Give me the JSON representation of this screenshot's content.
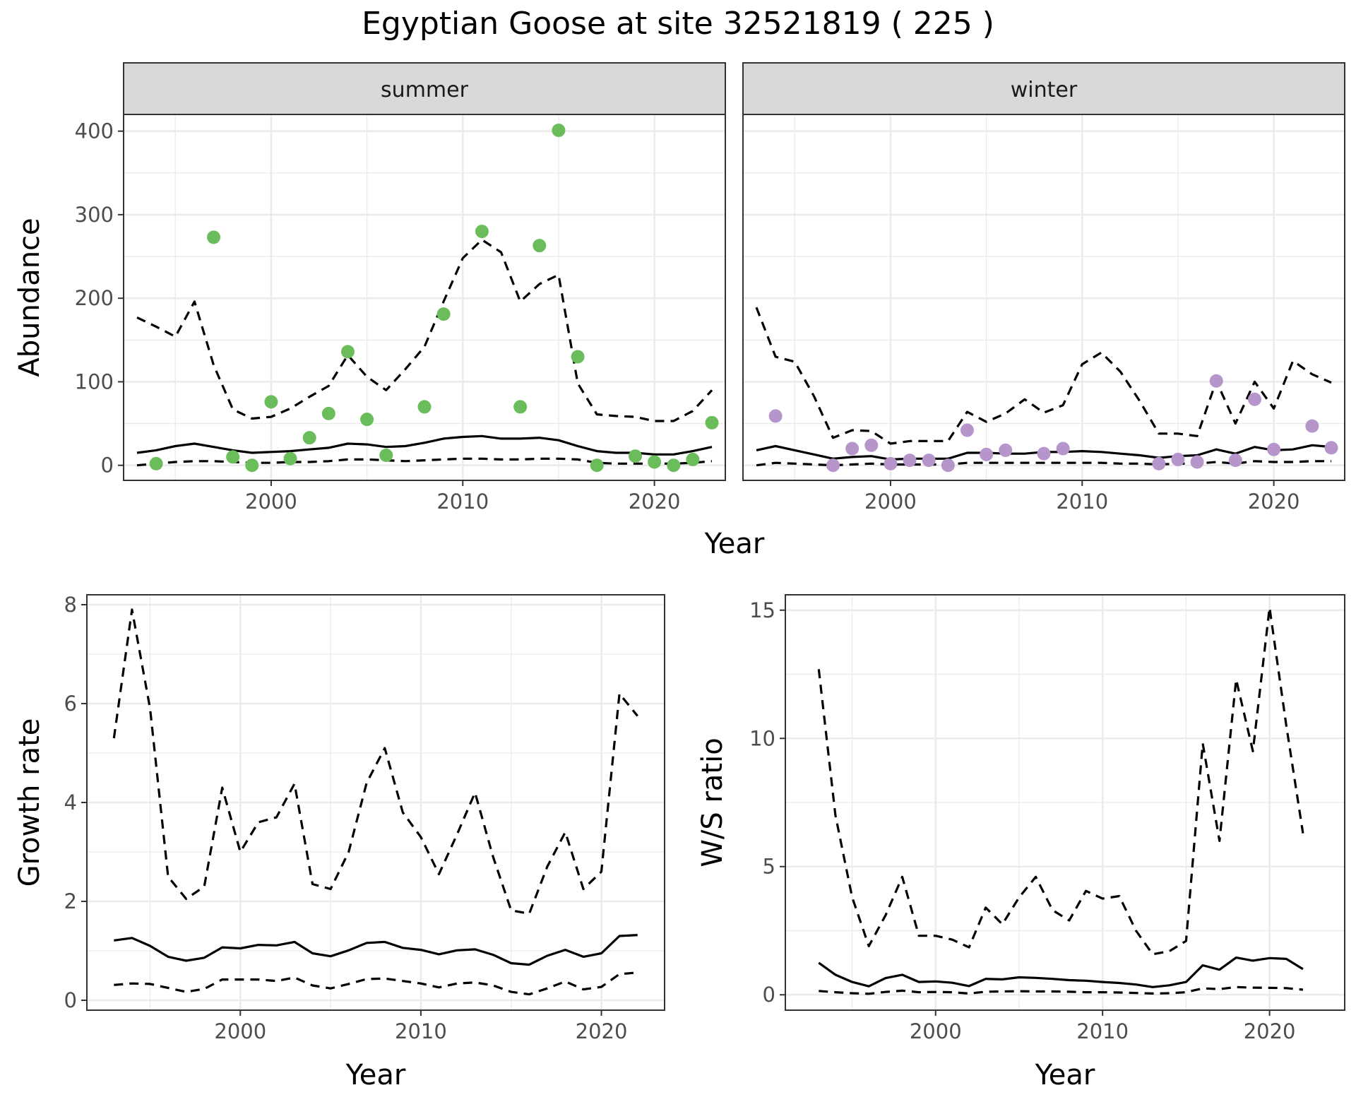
{
  "title": "Egyptian Goose at site 32521819 ( 225 )",
  "colors": {
    "summer": "#6bbd5b",
    "winter": "#b695cb",
    "line": "#000000"
  },
  "chart_data": [
    {
      "type": "scatter",
      "facet": "summer",
      "strip_label": "summer",
      "xlabel": "Year",
      "ylabel": "Abundance",
      "xlim": [
        1992.3,
        2023.7
      ],
      "ylim": [
        -18,
        420
      ],
      "x_ticks": [
        2000,
        2010,
        2020
      ],
      "y_ticks": [
        0,
        100,
        200,
        300,
        400
      ],
      "points": {
        "x": [
          1994,
          1997,
          1998,
          1999,
          2000,
          2001,
          2002,
          2003,
          2004,
          2005,
          2006,
          2008,
          2009,
          2011,
          2013,
          2014,
          2015,
          2016,
          2017,
          2019,
          2020,
          2021,
          2022,
          2023
        ],
        "y": [
          2,
          273,
          10,
          0,
          76,
          8,
          33,
          62,
          136,
          55,
          12,
          70,
          181,
          280,
          70,
          263,
          401,
          130,
          0,
          11,
          4,
          0,
          7,
          51
        ]
      },
      "series": [
        {
          "style": "solid",
          "x": [
            1993,
            1994,
            1995,
            1996,
            1997,
            1998,
            1999,
            2000,
            2001,
            2002,
            2003,
            2004,
            2005,
            2006,
            2007,
            2008,
            2009,
            2010,
            2011,
            2012,
            2013,
            2014,
            2015,
            2016,
            2017,
            2018,
            2019,
            2020,
            2021,
            2022,
            2023
          ],
          "y": [
            15,
            18,
            23,
            26,
            22,
            18,
            15,
            16,
            17,
            19,
            21,
            26,
            25,
            22,
            23,
            27,
            32,
            34,
            35,
            32,
            32,
            33,
            30,
            23,
            17,
            15,
            15,
            13,
            13,
            17,
            22
          ]
        },
        {
          "style": "dashed",
          "x": [
            1993,
            1994,
            1995,
            1996,
            1997,
            1998,
            1999,
            2000,
            2001,
            2002,
            2003,
            2004,
            2005,
            2006,
            2007,
            2008,
            2009,
            2010,
            2011,
            2012,
            2013,
            2014,
            2015,
            2016,
            2017,
            2018,
            2019,
            2020,
            2021,
            2022,
            2023
          ],
          "y": [
            177,
            166,
            154,
            196,
            120,
            67,
            56,
            58,
            68,
            82,
            95,
            132,
            106,
            90,
            115,
            142,
            196,
            248,
            270,
            255,
            196,
            217,
            228,
            98,
            61,
            59,
            58,
            53,
            53,
            65,
            90
          ]
        },
        {
          "style": "dashed",
          "x": [
            1993,
            1994,
            1995,
            1996,
            1997,
            1998,
            1999,
            2000,
            2001,
            2002,
            2003,
            2004,
            2005,
            2006,
            2007,
            2008,
            2009,
            2010,
            2011,
            2012,
            2013,
            2014,
            2015,
            2016,
            2017,
            2018,
            2019,
            2020,
            2021,
            2022,
            2023
          ],
          "y": [
            0,
            2,
            4,
            5,
            5,
            4,
            3,
            3,
            4,
            4,
            5,
            7,
            7,
            6,
            5,
            6,
            7,
            8,
            8,
            7,
            7,
            8,
            8,
            7,
            3,
            2,
            2,
            2,
            2,
            3,
            5
          ]
        }
      ]
    },
    {
      "type": "scatter",
      "facet": "winter",
      "strip_label": "winter",
      "xlabel": "Year",
      "ylabel": "Abundance",
      "xlim": [
        1992.3,
        2023.7
      ],
      "ylim": [
        -18,
        420
      ],
      "x_ticks": [
        2000,
        2010,
        2020
      ],
      "y_ticks": [
        0,
        100,
        200,
        300,
        400
      ],
      "points": {
        "x": [
          1994,
          1997,
          1998,
          1999,
          2000,
          2001,
          2002,
          2003,
          2004,
          2005,
          2006,
          2008,
          2009,
          2014,
          2015,
          2016,
          2017,
          2018,
          2019,
          2020,
          2022,
          2023
        ],
        "y": [
          59,
          0,
          20,
          24,
          2,
          6,
          6,
          0,
          42,
          13,
          18,
          14,
          20,
          2,
          7,
          4,
          101,
          6,
          79,
          19,
          47,
          21
        ]
      },
      "series": [
        {
          "style": "solid",
          "x": [
            1993,
            1994,
            1995,
            1996,
            1997,
            1998,
            1999,
            2000,
            2001,
            2002,
            2003,
            2004,
            2005,
            2006,
            2007,
            2008,
            2009,
            2010,
            2011,
            2012,
            2013,
            2014,
            2015,
            2016,
            2017,
            2018,
            2019,
            2020,
            2021,
            2022,
            2023
          ],
          "y": [
            18,
            23,
            18,
            13,
            8,
            10,
            11,
            7,
            8,
            8,
            8,
            15,
            15,
            14,
            14,
            16,
            16,
            17,
            16,
            14,
            12,
            9,
            11,
            12,
            19,
            14,
            22,
            18,
            19,
            24,
            22
          ]
        },
        {
          "style": "dashed",
          "x": [
            1993,
            1994,
            1995,
            1996,
            1997,
            1998,
            1999,
            2000,
            2001,
            2002,
            2003,
            2004,
            2005,
            2006,
            2007,
            2008,
            2009,
            2010,
            2011,
            2012,
            2013,
            2014,
            2015,
            2016,
            2017,
            2018,
            2019,
            2020,
            2021,
            2022,
            2023
          ],
          "y": [
            189,
            130,
            124,
            83,
            33,
            42,
            41,
            26,
            29,
            29,
            29,
            64,
            52,
            62,
            79,
            63,
            72,
            121,
            135,
            112,
            77,
            38,
            38,
            35,
            101,
            50,
            100,
            68,
            125,
            109,
            99
          ]
        },
        {
          "style": "dashed",
          "x": [
            1993,
            1994,
            1995,
            1996,
            1997,
            1998,
            1999,
            2000,
            2001,
            2002,
            2003,
            2004,
            2005,
            2006,
            2007,
            2008,
            2009,
            2010,
            2011,
            2012,
            2013,
            2014,
            2015,
            2016,
            2017,
            2018,
            2019,
            2020,
            2021,
            2022,
            2023
          ],
          "y": [
            0,
            3,
            2,
            1,
            0,
            1,
            2,
            1,
            1,
            1,
            1,
            3,
            3,
            3,
            3,
            3,
            3,
            3,
            3,
            2,
            2,
            1,
            2,
            2,
            4,
            2,
            5,
            4,
            4,
            5,
            5
          ]
        }
      ]
    },
    {
      "type": "line",
      "xlabel": "Year",
      "ylabel": "Growth rate",
      "xlim": [
        1991.5,
        2023.5
      ],
      "ylim": [
        -0.2,
        8.2
      ],
      "x_ticks": [
        2000,
        2010,
        2020
      ],
      "y_ticks": [
        0,
        2,
        4,
        6,
        8
      ],
      "series": [
        {
          "style": "solid",
          "x": [
            1993,
            1994,
            1995,
            1996,
            1997,
            1998,
            1999,
            2000,
            2001,
            2002,
            2003,
            2004,
            2005,
            2006,
            2007,
            2008,
            2009,
            2010,
            2011,
            2012,
            2013,
            2014,
            2015,
            2016,
            2017,
            2018,
            2019,
            2020,
            2021,
            2022
          ],
          "y": [
            1.21,
            1.26,
            1.1,
            0.88,
            0.8,
            0.86,
            1.07,
            1.05,
            1.12,
            1.11,
            1.18,
            0.95,
            0.89,
            1.01,
            1.16,
            1.18,
            1.06,
            1.02,
            0.93,
            1.01,
            1.03,
            0.92,
            0.75,
            0.72,
            0.9,
            1.02,
            0.88,
            0.95,
            1.3,
            1.32
          ]
        },
        {
          "style": "dashed",
          "x": [
            1993,
            1994,
            1995,
            1996,
            1997,
            1998,
            1999,
            2000,
            2001,
            2002,
            2003,
            2004,
            2005,
            2006,
            2007,
            2008,
            2009,
            2010,
            2011,
            2012,
            2013,
            2014,
            2015,
            2016,
            2017,
            2018,
            2019,
            2020,
            2021,
            2022
          ],
          "y": [
            5.3,
            7.9,
            5.9,
            2.5,
            2.05,
            2.3,
            4.3,
            3.0,
            3.6,
            3.7,
            4.38,
            2.35,
            2.25,
            3.0,
            4.4,
            5.1,
            3.8,
            3.3,
            2.55,
            3.35,
            4.2,
            2.9,
            1.82,
            1.75,
            2.7,
            3.4,
            2.25,
            2.6,
            6.2,
            5.75
          ]
        },
        {
          "style": "dashed",
          "x": [
            1993,
            1994,
            1995,
            1996,
            1997,
            1998,
            1999,
            2000,
            2001,
            2002,
            2003,
            2004,
            2005,
            2006,
            2007,
            2008,
            2009,
            2010,
            2011,
            2012,
            2013,
            2014,
            2015,
            2016,
            2017,
            2018,
            2019,
            2020,
            2021,
            2022
          ],
          "y": [
            0.31,
            0.34,
            0.33,
            0.25,
            0.17,
            0.23,
            0.42,
            0.42,
            0.42,
            0.39,
            0.46,
            0.3,
            0.24,
            0.33,
            0.43,
            0.44,
            0.39,
            0.34,
            0.26,
            0.34,
            0.36,
            0.3,
            0.17,
            0.12,
            0.24,
            0.38,
            0.22,
            0.27,
            0.53,
            0.56
          ]
        }
      ]
    },
    {
      "type": "line",
      "xlabel": "Year",
      "ylabel": "W/S ratio",
      "xlim": [
        1991,
        2024.5
      ],
      "ylim": [
        -0.6,
        15.6
      ],
      "x_ticks": [
        2000,
        2010,
        2020
      ],
      "y_ticks": [
        0,
        5,
        10,
        15
      ],
      "series": [
        {
          "style": "solid",
          "x": [
            1993,
            1994,
            1995,
            1996,
            1997,
            1998,
            1999,
            2000,
            2001,
            2002,
            2003,
            2004,
            2005,
            2006,
            2007,
            2008,
            2009,
            2010,
            2011,
            2012,
            2013,
            2014,
            2015,
            2016,
            2017,
            2018,
            2019,
            2020,
            2021,
            2022
          ],
          "y": [
            1.25,
            0.78,
            0.5,
            0.33,
            0.65,
            0.78,
            0.5,
            0.52,
            0.47,
            0.34,
            0.62,
            0.6,
            0.68,
            0.66,
            0.62,
            0.57,
            0.55,
            0.5,
            0.46,
            0.4,
            0.3,
            0.37,
            0.5,
            1.15,
            0.98,
            1.45,
            1.33,
            1.43,
            1.4,
            1.0
          ]
        },
        {
          "style": "dashed",
          "x": [
            1993,
            1994,
            1995,
            1996,
            1997,
            1998,
            1999,
            2000,
            2001,
            2002,
            2003,
            2004,
            2005,
            2006,
            2007,
            2008,
            2009,
            2010,
            2011,
            2012,
            2013,
            2014,
            2015,
            2016,
            2017,
            2018,
            2019,
            2020,
            2021,
            2022
          ],
          "y": [
            12.7,
            7.0,
            3.8,
            1.9,
            3.1,
            4.6,
            2.3,
            2.3,
            2.15,
            1.85,
            3.4,
            2.75,
            3.8,
            4.6,
            3.3,
            2.9,
            4.05,
            3.75,
            3.85,
            2.5,
            1.58,
            1.7,
            2.1,
            9.8,
            6.0,
            12.3,
            9.5,
            15.1,
            10.5,
            6.3
          ]
        },
        {
          "style": "dashed",
          "x": [
            1993,
            1994,
            1995,
            1996,
            1997,
            1998,
            1999,
            2000,
            2001,
            2002,
            2003,
            2004,
            2005,
            2006,
            2007,
            2008,
            2009,
            2010,
            2011,
            2012,
            2013,
            2014,
            2015,
            2016,
            2017,
            2018,
            2019,
            2020,
            2021,
            2022
          ],
          "y": [
            0.15,
            0.1,
            0.06,
            0.04,
            0.11,
            0.16,
            0.1,
            0.11,
            0.1,
            0.05,
            0.12,
            0.13,
            0.14,
            0.13,
            0.13,
            0.12,
            0.1,
            0.1,
            0.09,
            0.07,
            0.05,
            0.06,
            0.1,
            0.25,
            0.22,
            0.3,
            0.28,
            0.27,
            0.26,
            0.2
          ]
        }
      ]
    }
  ]
}
